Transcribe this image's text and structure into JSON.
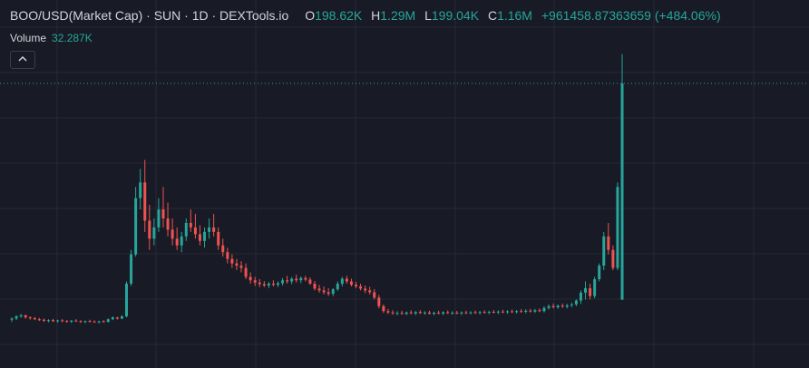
{
  "header": {
    "symbol": "BOO/USD(Market Cap) · SUN · 1D · DEXTools.io",
    "open_label": "O",
    "open": "198.62K",
    "high_label": "H",
    "high": "1.29M",
    "low_label": "L",
    "low": "199.04K",
    "close_label": "C",
    "close": "1.16M",
    "change": "+961458.87363659 (+484.06%)"
  },
  "volume": {
    "label": "Volume",
    "value": "32.287K"
  },
  "collapse_icon": "chevron-up-icon",
  "colors": {
    "background": "#181a25",
    "grid": "#262a36",
    "up": "#26a69a",
    "down": "#ef5350",
    "price_line": "#26a69a"
  },
  "chart_data": {
    "type": "candlestick",
    "title": "BOO/USD(Market Cap) · SUN · 1D · DEXTools.io",
    "ylim": [
      0,
      1450000
    ],
    "last_price_line": 1160000,
    "grid": true,
    "series": [
      {
        "candles": [
          [
            110000,
            120000,
            100000,
            115000
          ],
          [
            115000,
            130000,
            108000,
            125000
          ],
          [
            125000,
            135000,
            118000,
            130000
          ],
          [
            130000,
            132000,
            115000,
            120000
          ],
          [
            120000,
            125000,
            110000,
            117000
          ],
          [
            117000,
            122000,
            108000,
            112000
          ],
          [
            112000,
            118000,
            104000,
            110000
          ],
          [
            110000,
            115000,
            100000,
            105000
          ],
          [
            105000,
            112000,
            98000,
            108000
          ],
          [
            108000,
            114000,
            100000,
            103000
          ],
          [
            103000,
            110000,
            96000,
            107000
          ],
          [
            107000,
            113000,
            99000,
            104000
          ],
          [
            104000,
            109000,
            97000,
            101000
          ],
          [
            101000,
            108000,
            95000,
            106000
          ],
          [
            106000,
            112000,
            100000,
            103000
          ],
          [
            103000,
            108000,
            96000,
            100000
          ],
          [
            100000,
            106000,
            94000,
            104000
          ],
          [
            104000,
            110000,
            98000,
            102000
          ],
          [
            102000,
            107000,
            96000,
            99000
          ],
          [
            99000,
            105000,
            93000,
            103000
          ],
          [
            103000,
            108000,
            97000,
            100000
          ],
          [
            100000,
            115000,
            98000,
            112000
          ],
          [
            112000,
            125000,
            108000,
            120000
          ],
          [
            120000,
            122000,
            110000,
            115000
          ],
          [
            115000,
            130000,
            112000,
            125000
          ],
          [
            125000,
            280000,
            120000,
            270000
          ],
          [
            270000,
            420000,
            260000,
            400000
          ],
          [
            400000,
            700000,
            390000,
            650000
          ],
          [
            650000,
            780000,
            600000,
            720000
          ],
          [
            720000,
            820000,
            500000,
            550000
          ],
          [
            550000,
            620000,
            420000,
            470000
          ],
          [
            470000,
            560000,
            440000,
            520000
          ],
          [
            520000,
            650000,
            500000,
            600000
          ],
          [
            600000,
            700000,
            520000,
            560000
          ],
          [
            560000,
            630000,
            480000,
            510000
          ],
          [
            510000,
            560000,
            440000,
            470000
          ],
          [
            470000,
            520000,
            420000,
            440000
          ],
          [
            440000,
            500000,
            410000,
            480000
          ],
          [
            480000,
            560000,
            460000,
            540000
          ],
          [
            540000,
            600000,
            500000,
            520000
          ],
          [
            520000,
            580000,
            470000,
            490000
          ],
          [
            490000,
            530000,
            440000,
            460000
          ],
          [
            460000,
            520000,
            430000,
            500000
          ],
          [
            500000,
            560000,
            470000,
            520000
          ],
          [
            520000,
            580000,
            480000,
            500000
          ],
          [
            500000,
            520000,
            420000,
            440000
          ],
          [
            440000,
            470000,
            390000,
            410000
          ],
          [
            410000,
            430000,
            360000,
            380000
          ],
          [
            380000,
            400000,
            340000,
            360000
          ],
          [
            360000,
            380000,
            330000,
            350000
          ],
          [
            350000,
            370000,
            320000,
            340000
          ],
          [
            340000,
            360000,
            290000,
            300000
          ],
          [
            300000,
            320000,
            270000,
            285000
          ],
          [
            285000,
            300000,
            260000,
            275000
          ],
          [
            275000,
            290000,
            255000,
            268000
          ],
          [
            268000,
            282000,
            255000,
            262000
          ],
          [
            262000,
            278000,
            250000,
            270000
          ],
          [
            270000,
            285000,
            258000,
            265000
          ],
          [
            265000,
            280000,
            255000,
            272000
          ],
          [
            272000,
            295000,
            262000,
            285000
          ],
          [
            285000,
            305000,
            270000,
            280000
          ],
          [
            280000,
            300000,
            268000,
            292000
          ],
          [
            292000,
            310000,
            275000,
            285000
          ],
          [
            285000,
            302000,
            272000,
            295000
          ],
          [
            295000,
            305000,
            280000,
            288000
          ],
          [
            288000,
            298000,
            265000,
            270000
          ],
          [
            270000,
            282000,
            240000,
            248000
          ],
          [
            248000,
            265000,
            230000,
            240000
          ],
          [
            240000,
            258000,
            222000,
            232000
          ],
          [
            232000,
            250000,
            215000,
            225000
          ],
          [
            225000,
            250000,
            215000,
            245000
          ],
          [
            245000,
            280000,
            238000,
            270000
          ],
          [
            270000,
            300000,
            258000,
            292000
          ],
          [
            292000,
            305000,
            270000,
            280000
          ],
          [
            280000,
            292000,
            258000,
            265000
          ],
          [
            265000,
            278000,
            250000,
            258000
          ],
          [
            258000,
            270000,
            240000,
            248000
          ],
          [
            248000,
            262000,
            228000,
            240000
          ],
          [
            240000,
            256000,
            222000,
            232000
          ],
          [
            232000,
            246000,
            200000,
            208000
          ],
          [
            208000,
            220000,
            160000,
            170000
          ],
          [
            170000,
            178000,
            140000,
            148000
          ],
          [
            148000,
            158000,
            135000,
            142000
          ],
          [
            142000,
            152000,
            132000,
            138000
          ],
          [
            138000,
            148000,
            130000,
            140000
          ],
          [
            140000,
            150000,
            132000,
            136000
          ],
          [
            136000,
            146000,
            130000,
            142000
          ],
          [
            142000,
            152000,
            134000,
            138000
          ],
          [
            138000,
            148000,
            130000,
            144000
          ],
          [
            144000,
            152000,
            136000,
            139000
          ],
          [
            139000,
            148000,
            132000,
            142000
          ],
          [
            142000,
            150000,
            134000,
            136000
          ],
          [
            136000,
            146000,
            130000,
            141000
          ],
          [
            141000,
            150000,
            134000,
            137000
          ],
          [
            137000,
            147000,
            131000,
            143000
          ],
          [
            143000,
            151000,
            135000,
            139000
          ],
          [
            139000,
            148000,
            132000,
            141000
          ],
          [
            141000,
            149000,
            134000,
            138000
          ],
          [
            138000,
            147000,
            131000,
            142000
          ],
          [
            142000,
            150000,
            135000,
            140000
          ],
          [
            140000,
            148000,
            133000,
            143000
          ],
          [
            143000,
            151000,
            136000,
            140000
          ],
          [
            140000,
            149000,
            133000,
            144000
          ],
          [
            144000,
            152000,
            137000,
            141000
          ],
          [
            141000,
            150000,
            134000,
            145000
          ],
          [
            145000,
            153000,
            138000,
            142000
          ],
          [
            142000,
            151000,
            135000,
            146000
          ],
          [
            146000,
            154000,
            139000,
            143000
          ],
          [
            143000,
            152000,
            136000,
            147000
          ],
          [
            147000,
            155000,
            140000,
            144000
          ],
          [
            144000,
            153000,
            137000,
            148000
          ],
          [
            148000,
            157000,
            141000,
            145000
          ],
          [
            145000,
            156000,
            138000,
            150000
          ],
          [
            150000,
            158000,
            142000,
            146000
          ],
          [
            146000,
            158000,
            140000,
            152000
          ],
          [
            152000,
            160000,
            144000,
            148000
          ],
          [
            148000,
            170000,
            142000,
            162000
          ],
          [
            162000,
            178000,
            155000,
            170000
          ],
          [
            170000,
            182000,
            160000,
            165000
          ],
          [
            165000,
            178000,
            158000,
            172000
          ],
          [
            172000,
            182000,
            162000,
            168000
          ],
          [
            168000,
            180000,
            160000,
            174000
          ],
          [
            174000,
            186000,
            165000,
            178000
          ],
          [
            178000,
            200000,
            170000,
            195000
          ],
          [
            195000,
            240000,
            180000,
            230000
          ],
          [
            230000,
            280000,
            200000,
            250000
          ],
          [
            250000,
            270000,
            200000,
            215000
          ],
          [
            215000,
            300000,
            205000,
            290000
          ],
          [
            290000,
            360000,
            280000,
            350000
          ],
          [
            350000,
            500000,
            330000,
            480000
          ],
          [
            480000,
            540000,
            400000,
            420000
          ],
          [
            420000,
            440000,
            330000,
            340000
          ],
          [
            340000,
            720000,
            330000,
            700000
          ],
          [
            198620,
            1290000,
            199040,
            1160000
          ]
        ]
      }
    ]
  }
}
